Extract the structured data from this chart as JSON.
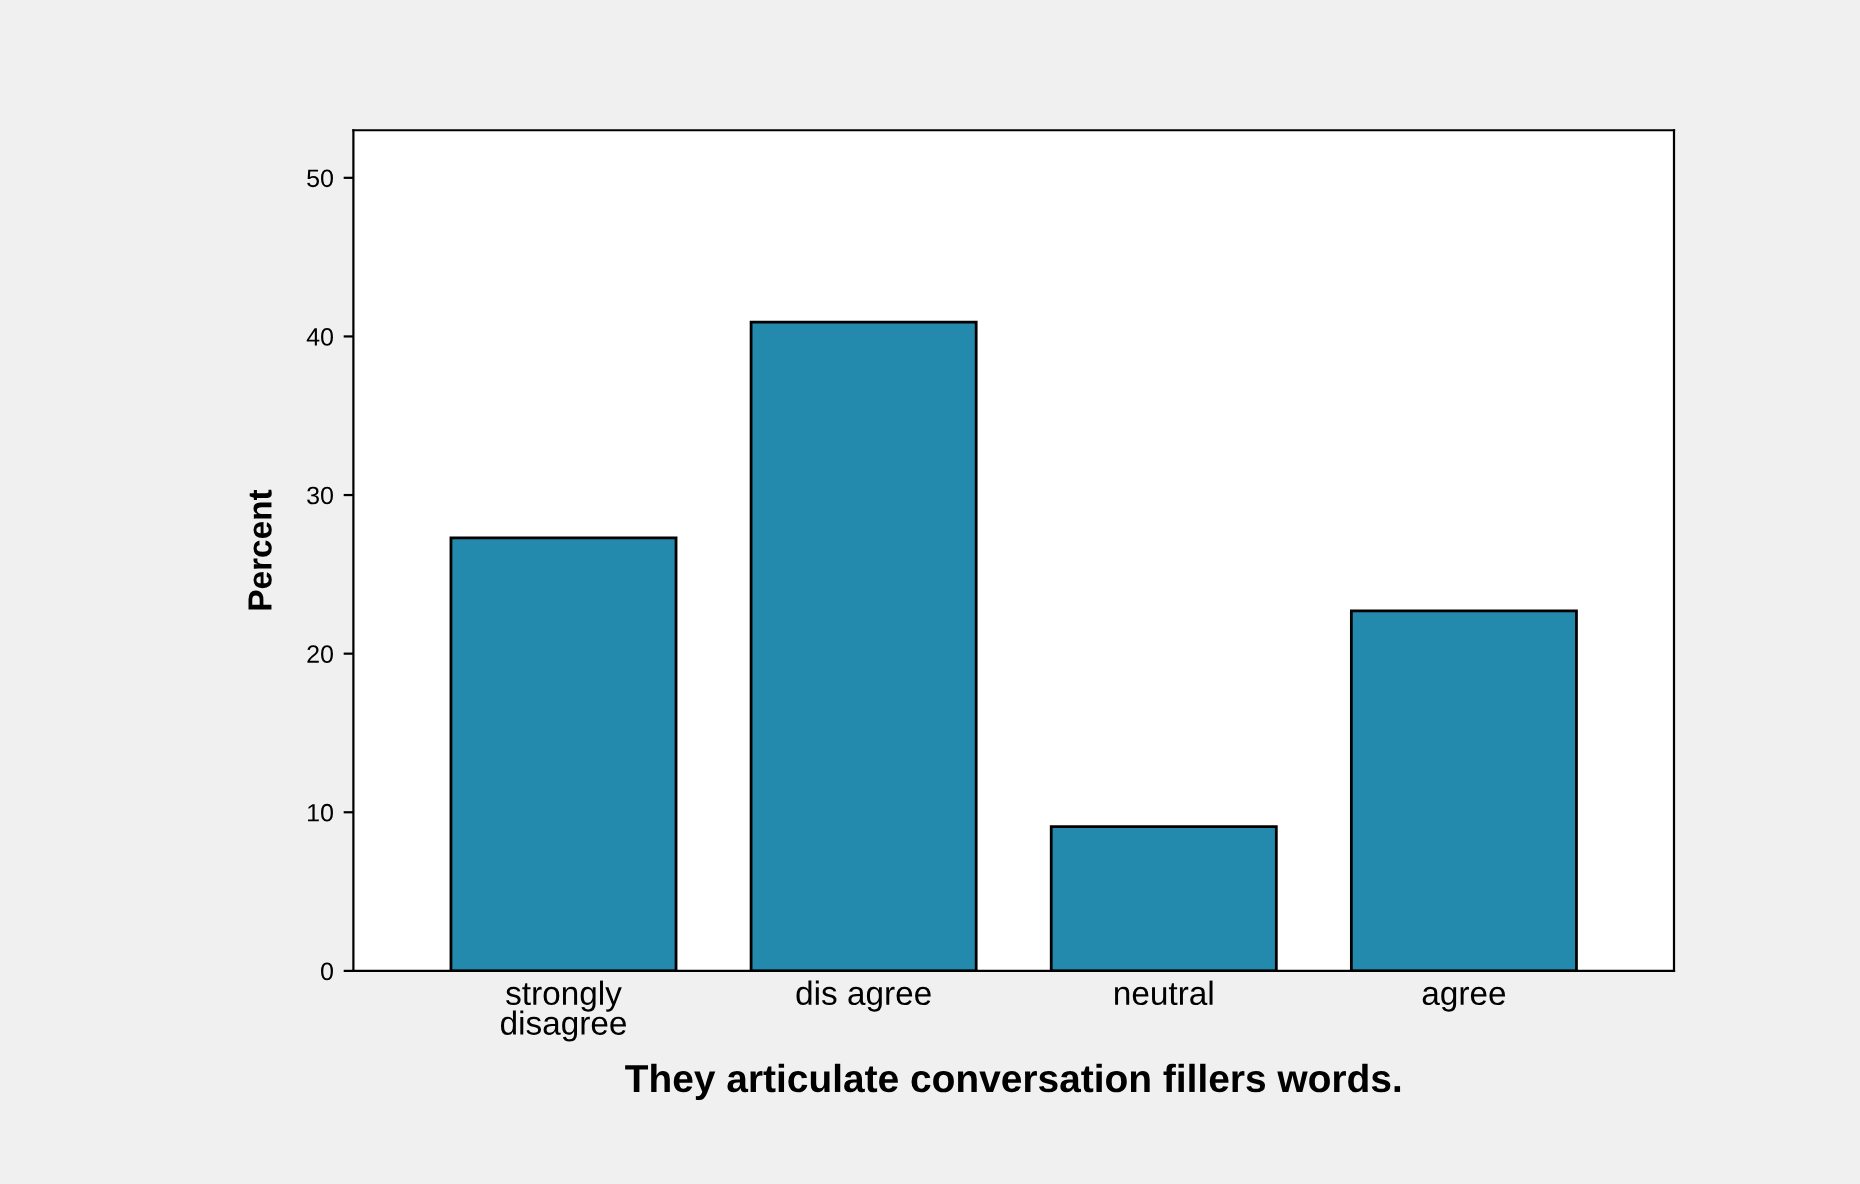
{
  "chart_data": {
    "type": "bar",
    "xlabel": "They articulate conversation fillers words.",
    "ylabel": "Percent",
    "categories": [
      "strongly\ndisagree",
      "dis agree",
      "neutral",
      "agree"
    ],
    "values": [
      27.3,
      40.9,
      9.1,
      22.7
    ],
    "color": "#2389ad",
    "ylim": [
      0,
      53
    ],
    "yticks": [
      0,
      10,
      20,
      30,
      40,
      50
    ],
    "grid": false
  }
}
